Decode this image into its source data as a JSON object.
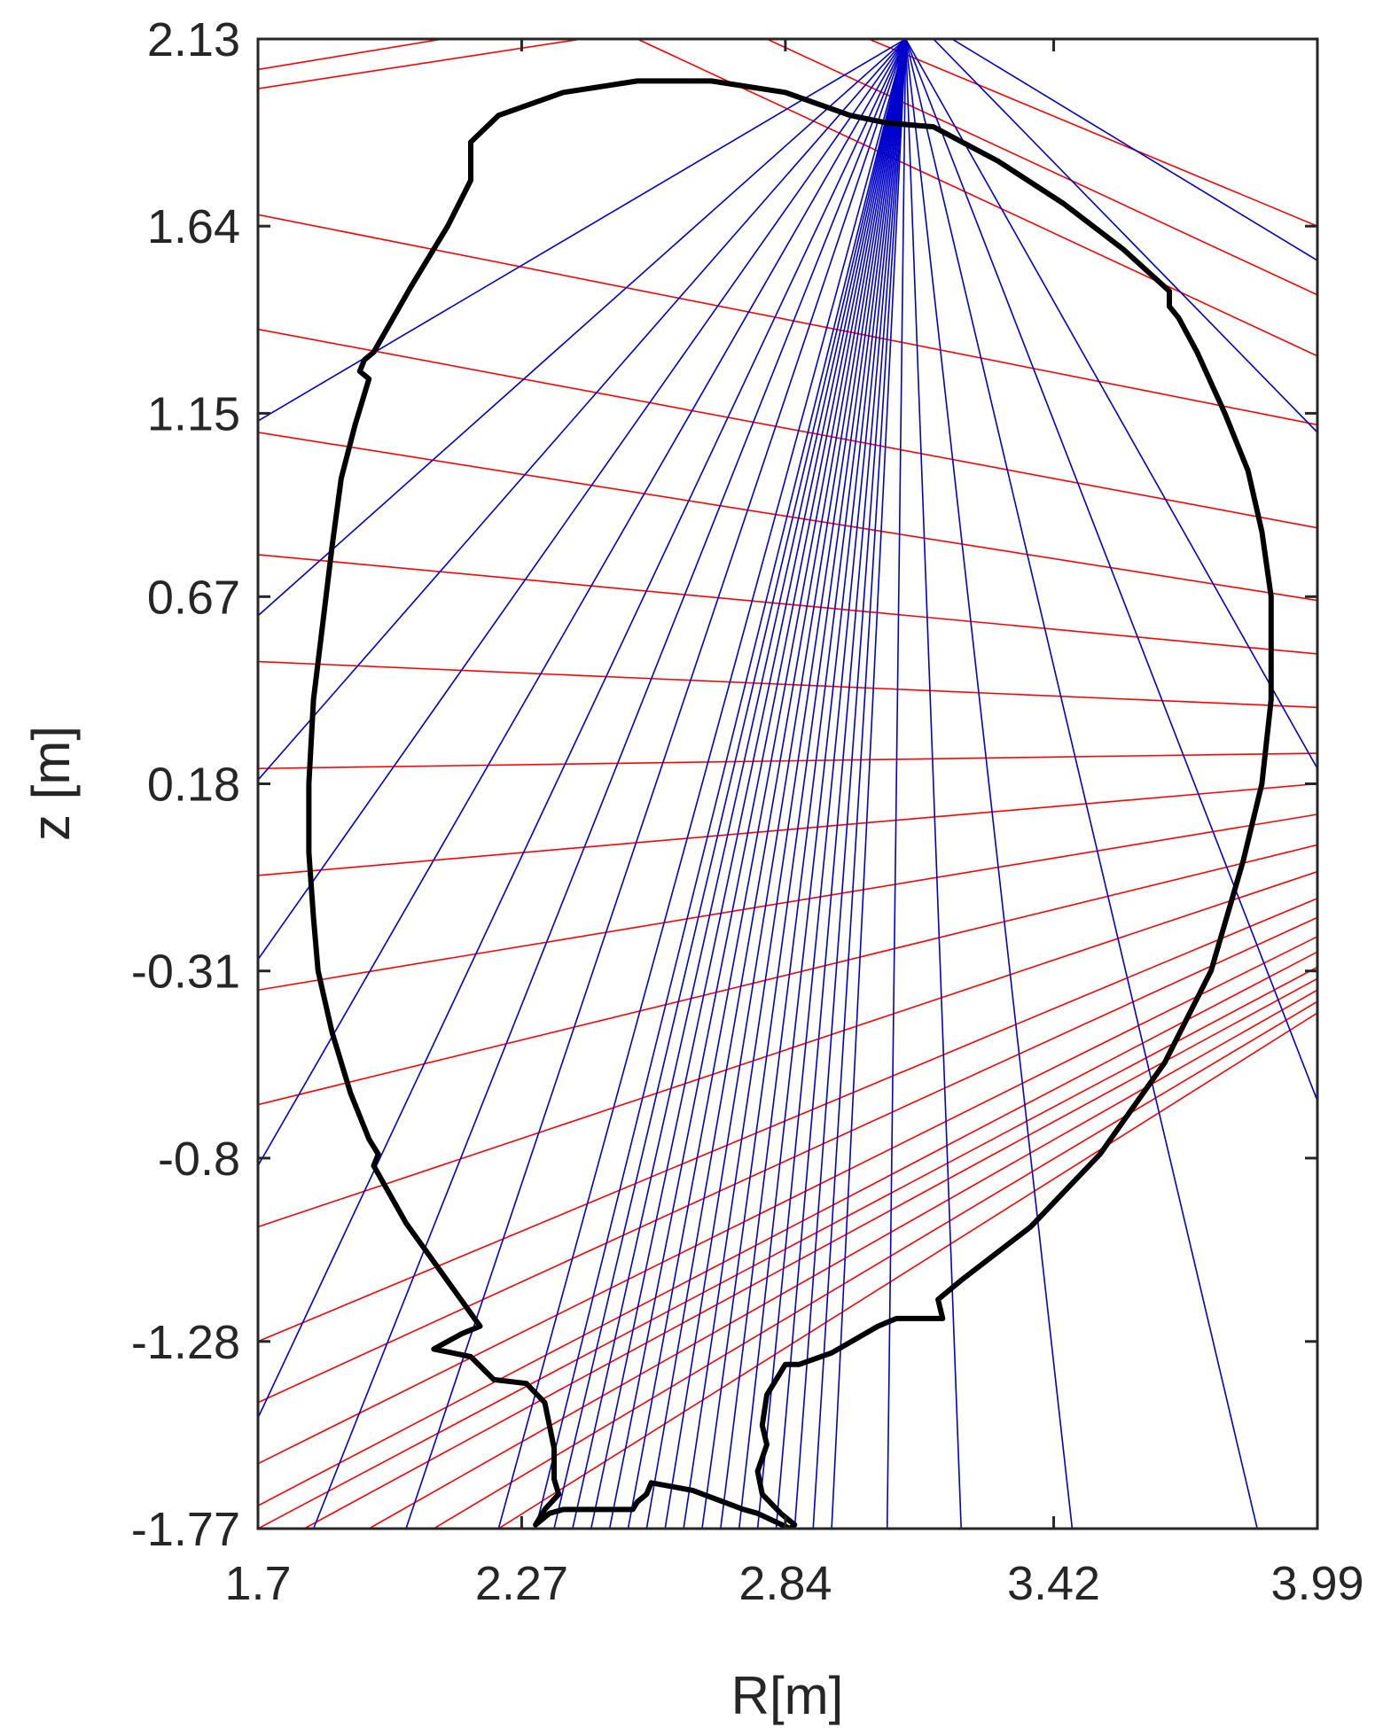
{
  "chart_data": {
    "type": "line",
    "xlabel": "R[m]",
    "ylabel": "z [m]",
    "xlim": [
      1.7,
      3.99
    ],
    "ylim": [
      -1.77,
      2.13
    ],
    "x_ticks": [
      1.7,
      2.27,
      2.84,
      3.42,
      3.99
    ],
    "x_tick_labels": [
      "1.7",
      "2.27",
      "2.84",
      "3.42",
      "3.99"
    ],
    "y_ticks": [
      2.13,
      1.64,
      1.15,
      0.67,
      0.18,
      -0.31,
      -0.8,
      -1.28,
      -1.77
    ],
    "y_tick_labels": [
      "2.13",
      "1.64",
      "1.15",
      "0.67",
      "0.18",
      "-0.31",
      "-0.8",
      "-1.28",
      "-1.77"
    ],
    "grid": false,
    "box": true,
    "colors": {
      "vessel": "#000000",
      "horizontal_chords": "#ff0000",
      "vertical_chords": "#0000cc",
      "axes": "#262626"
    },
    "series": [
      {
        "type": "polyline",
        "color": "#000000",
        "points": [
          [
            2.16,
            1.86
          ],
          [
            2.22,
            1.93
          ],
          [
            2.36,
            1.99
          ],
          [
            2.52,
            2.02
          ],
          [
            2.68,
            2.02
          ],
          [
            2.84,
            1.99
          ],
          [
            2.98,
            1.93
          ],
          [
            3.06,
            1.91
          ],
          [
            3.16,
            1.9
          ],
          [
            3.3,
            1.81
          ],
          [
            3.44,
            1.7
          ],
          [
            3.57,
            1.58
          ],
          [
            3.67,
            1.47
          ],
          [
            3.67,
            1.43
          ],
          [
            3.69,
            1.4
          ],
          [
            3.73,
            1.31
          ],
          [
            3.79,
            1.15
          ],
          [
            3.84,
            1.0
          ],
          [
            3.87,
            0.84
          ],
          [
            3.89,
            0.67
          ],
          [
            3.89,
            0.4
          ],
          [
            3.87,
            0.18
          ],
          [
            3.83,
            -0.02
          ],
          [
            3.76,
            -0.31
          ],
          [
            3.66,
            -0.55
          ],
          [
            3.52,
            -0.79
          ],
          [
            3.37,
            -0.98
          ],
          [
            3.22,
            -1.12
          ],
          [
            3.17,
            -1.17
          ],
          [
            3.18,
            -1.22
          ],
          [
            3.14,
            -1.22
          ],
          [
            3.08,
            -1.22
          ],
          [
            3.04,
            -1.24
          ],
          [
            2.94,
            -1.31
          ],
          [
            2.87,
            -1.34
          ],
          [
            2.84,
            -1.34
          ],
          [
            2.82,
            -1.38
          ],
          [
            2.8,
            -1.42
          ],
          [
            2.79,
            -1.5
          ],
          [
            2.8,
            -1.55
          ],
          [
            2.78,
            -1.62
          ],
          [
            2.79,
            -1.68
          ],
          [
            2.83,
            -1.73
          ],
          [
            2.86,
            -1.76
          ],
          [
            2.85,
            -1.77
          ],
          [
            2.78,
            -1.73
          ],
          [
            2.75,
            -1.72
          ],
          [
            2.64,
            -1.67
          ],
          [
            2.55,
            -1.65
          ],
          [
            2.54,
            -1.68
          ],
          [
            2.52,
            -1.7
          ],
          [
            2.51,
            -1.72
          ],
          [
            2.47,
            -1.72
          ],
          [
            2.36,
            -1.72
          ],
          [
            2.33,
            -1.73
          ],
          [
            2.3,
            -1.76
          ],
          [
            2.32,
            -1.72
          ],
          [
            2.35,
            -1.68
          ],
          [
            2.34,
            -1.64
          ],
          [
            2.34,
            -1.56
          ],
          [
            2.33,
            -1.5
          ],
          [
            2.32,
            -1.44
          ],
          [
            2.28,
            -1.39
          ],
          [
            2.21,
            -1.38
          ],
          [
            2.16,
            -1.32
          ],
          [
            2.12,
            -1.31
          ],
          [
            2.08,
            -1.3
          ],
          [
            2.14,
            -1.26
          ],
          [
            2.18,
            -1.24
          ],
          [
            2.02,
            -0.97
          ],
          [
            1.95,
            -0.82
          ],
          [
            1.96,
            -0.79
          ],
          [
            1.94,
            -0.75
          ],
          [
            1.9,
            -0.63
          ],
          [
            1.86,
            -0.47
          ],
          [
            1.83,
            -0.31
          ],
          [
            1.82,
            -0.17
          ],
          [
            1.81,
            0.0
          ],
          [
            1.81,
            0.18
          ],
          [
            1.82,
            0.4
          ],
          [
            1.84,
            0.6
          ],
          [
            1.86,
            0.8
          ],
          [
            1.88,
            0.98
          ],
          [
            1.91,
            1.12
          ],
          [
            1.94,
            1.24
          ],
          [
            1.92,
            1.26
          ],
          [
            1.93,
            1.29
          ],
          [
            1.95,
            1.31
          ],
          [
            2.03,
            1.48
          ],
          [
            2.11,
            1.64
          ],
          [
            2.16,
            1.76
          ],
          [
            2.16,
            1.86
          ]
        ]
      }
    ],
    "horizontal_chords": {
      "color": "#ff0000",
      "chords": [
        [
          [
            1.7,
            2.05
          ],
          [
            2.1,
            2.13
          ]
        ],
        [
          [
            1.7,
            2.0
          ],
          [
            2.4,
            2.13
          ]
        ],
        [
          [
            1.7,
            1.67
          ],
          [
            3.99,
            1.12
          ]
        ],
        [
          [
            1.7,
            1.37
          ],
          [
            3.99,
            0.85
          ]
        ],
        [
          [
            1.7,
            1.1
          ],
          [
            3.99,
            0.66
          ]
        ],
        [
          [
            1.7,
            0.78
          ],
          [
            3.99,
            0.52
          ]
        ],
        [
          [
            1.7,
            0.5
          ],
          [
            3.99,
            0.38
          ]
        ],
        [
          [
            1.7,
            0.22
          ],
          [
            3.99,
            0.26
          ]
        ],
        [
          [
            1.7,
            -0.06
          ],
          [
            3.99,
            0.18
          ]
        ],
        [
          [
            1.7,
            -0.36
          ],
          [
            3.99,
            0.1
          ]
        ],
        [
          [
            1.7,
            -0.66
          ],
          [
            3.99,
            0.02
          ]
        ],
        [
          [
            1.7,
            -0.98
          ],
          [
            3.99,
            -0.05
          ]
        ],
        [
          [
            1.7,
            -1.28
          ],
          [
            3.99,
            -0.12
          ]
        ],
        [
          [
            1.7,
            -1.44
          ],
          [
            3.99,
            -0.17
          ]
        ],
        [
          [
            1.7,
            -1.6
          ],
          [
            3.99,
            -0.22
          ]
        ],
        [
          [
            1.7,
            -1.71
          ],
          [
            3.99,
            -0.26
          ]
        ],
        [
          [
            1.7,
            -1.77
          ],
          [
            3.99,
            -0.3
          ]
        ],
        [
          [
            1.8,
            -1.77
          ],
          [
            3.99,
            -0.33
          ]
        ],
        [
          [
            1.94,
            -1.77
          ],
          [
            3.99,
            -0.36
          ]
        ],
        [
          [
            2.08,
            -1.77
          ],
          [
            3.99,
            -0.39
          ]
        ],
        [
          [
            2.22,
            -1.77
          ],
          [
            3.99,
            -0.42
          ]
        ],
        [
          [
            2.52,
            2.13
          ],
          [
            3.99,
            1.3
          ]
        ],
        [
          [
            2.8,
            2.13
          ],
          [
            3.99,
            1.46
          ]
        ],
        [
          [
            3.02,
            2.13
          ],
          [
            3.99,
            1.64
          ]
        ]
      ]
    },
    "vertical_chords": {
      "color": "#0000cc",
      "origin": [
        3.1,
        2.13
      ],
      "end_points": [
        [
          1.7,
          1.13
        ],
        [
          1.7,
          0.62
        ],
        [
          1.7,
          0.19
        ],
        [
          1.7,
          -0.28
        ],
        [
          1.7,
          -0.82
        ],
        [
          1.7,
          -1.48
        ],
        [
          1.82,
          -1.77
        ],
        [
          2.02,
          -1.77
        ],
        [
          2.22,
          -1.77
        ],
        [
          2.3,
          -1.77
        ],
        [
          2.34,
          -1.77
        ],
        [
          2.38,
          -1.77
        ],
        [
          2.42,
          -1.77
        ],
        [
          2.46,
          -1.77
        ],
        [
          2.5,
          -1.77
        ],
        [
          2.54,
          -1.77
        ],
        [
          2.58,
          -1.77
        ],
        [
          2.62,
          -1.77
        ],
        [
          2.66,
          -1.77
        ],
        [
          2.7,
          -1.77
        ],
        [
          2.74,
          -1.77
        ],
        [
          2.78,
          -1.77
        ],
        [
          2.82,
          -1.77
        ],
        [
          2.86,
          -1.77
        ],
        [
          2.9,
          -1.77
        ],
        [
          2.94,
          -1.77
        ],
        [
          3.06,
          -1.77
        ],
        [
          3.22,
          -1.77
        ],
        [
          3.46,
          -1.77
        ],
        [
          3.86,
          -1.77
        ],
        [
          3.99,
          -0.65
        ],
        [
          3.99,
          0.22
        ]
      ],
      "extra_chords": [
        [
          [
            3.16,
            2.13
          ],
          [
            3.99,
            1.1
          ]
        ],
        [
          [
            3.2,
            2.13
          ],
          [
            3.99,
            1.55
          ]
        ]
      ]
    }
  }
}
